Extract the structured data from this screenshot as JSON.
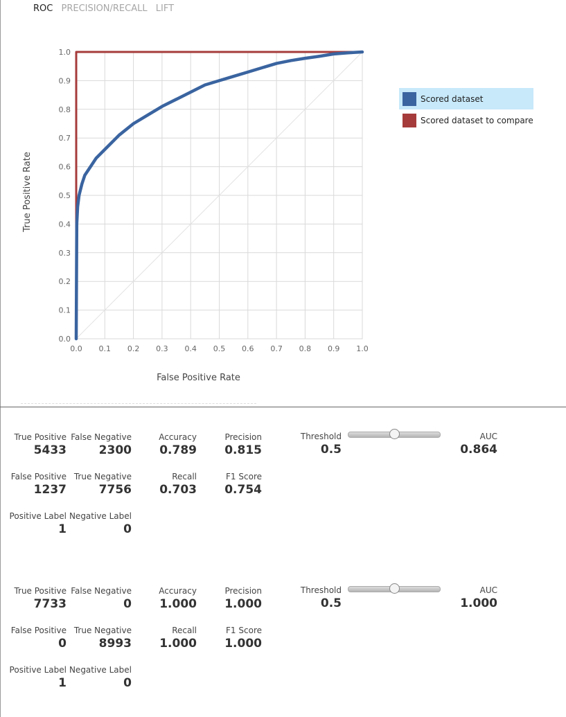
{
  "tabs": [
    {
      "label": "ROC",
      "active": true
    },
    {
      "label": "PRECISION/RECALL",
      "active": false
    },
    {
      "label": "LIFT",
      "active": false
    }
  ],
  "chart_data": {
    "type": "line",
    "xlabel": "False Positive Rate",
    "ylabel": "True Positive Rate",
    "xlim": [
      0,
      1
    ],
    "ylim": [
      0,
      1
    ],
    "x_ticks": [
      "0.0",
      "0.1",
      "0.2",
      "0.3",
      "0.4",
      "0.5",
      "0.6",
      "0.7",
      "0.8",
      "0.9",
      "1.0"
    ],
    "y_ticks": [
      "0.0",
      "0.1",
      "0.2",
      "0.3",
      "0.4",
      "0.5",
      "0.6",
      "0.7",
      "0.8",
      "0.9",
      "1.0"
    ],
    "grid": true,
    "legend_position": "right",
    "series": [
      {
        "name": "Scored dataset",
        "color": "#3a64a0",
        "x": [
          0,
          0.002,
          0.005,
          0.01,
          0.02,
          0.03,
          0.05,
          0.07,
          0.1,
          0.15,
          0.2,
          0.25,
          0.3,
          0.35,
          0.4,
          0.45,
          0.5,
          0.55,
          0.6,
          0.65,
          0.7,
          0.75,
          0.8,
          0.85,
          0.9,
          0.95,
          1.0
        ],
        "y": [
          0,
          0.4,
          0.46,
          0.5,
          0.54,
          0.57,
          0.6,
          0.63,
          0.66,
          0.71,
          0.75,
          0.78,
          0.81,
          0.835,
          0.86,
          0.885,
          0.9,
          0.915,
          0.93,
          0.945,
          0.96,
          0.97,
          0.978,
          0.985,
          0.993,
          0.997,
          1.0
        ]
      },
      {
        "name": "Scored dataset to compare",
        "color": "#a63b3b",
        "x": [
          0,
          0,
          1.0
        ],
        "y": [
          0,
          1.0,
          1.0
        ]
      }
    ],
    "reference_line": {
      "x": [
        0,
        1
      ],
      "y": [
        0,
        1
      ],
      "color": "#e2e2e2"
    }
  },
  "panels": [
    {
      "true_positive": {
        "label": "True Positive",
        "value": "5433"
      },
      "false_negative": {
        "label": "False Negative",
        "value": "2300"
      },
      "accuracy": {
        "label": "Accuracy",
        "value": "0.789"
      },
      "precision": {
        "label": "Precision",
        "value": "0.815"
      },
      "threshold": {
        "label": "Threshold",
        "value": "0.5",
        "slider_value": 0.5
      },
      "auc": {
        "label": "AUC",
        "value": "0.864"
      },
      "false_positive": {
        "label": "False Positive",
        "value": "1237"
      },
      "true_negative": {
        "label": "True Negative",
        "value": "7756"
      },
      "recall": {
        "label": "Recall",
        "value": "0.703"
      },
      "f1_score": {
        "label": "F1 Score",
        "value": "0.754"
      },
      "positive_label": {
        "label": "Positive Label",
        "value": "1"
      },
      "negative_label": {
        "label": "Negative Label",
        "value": "0"
      }
    },
    {
      "true_positive": {
        "label": "True Positive",
        "value": "7733"
      },
      "false_negative": {
        "label": "False Negative",
        "value": "0"
      },
      "accuracy": {
        "label": "Accuracy",
        "value": "1.000"
      },
      "precision": {
        "label": "Precision",
        "value": "1.000"
      },
      "threshold": {
        "label": "Threshold",
        "value": "0.5",
        "slider_value": 0.5
      },
      "auc": {
        "label": "AUC",
        "value": "1.000"
      },
      "false_positive": {
        "label": "False Positive",
        "value": "0"
      },
      "true_negative": {
        "label": "True Negative",
        "value": "8993"
      },
      "recall": {
        "label": "Recall",
        "value": "1.000"
      },
      "f1_score": {
        "label": "F1 Score",
        "value": "1.000"
      },
      "positive_label": {
        "label": "Positive Label",
        "value": "1"
      },
      "negative_label": {
        "label": "Negative Label",
        "value": "0"
      }
    }
  ]
}
